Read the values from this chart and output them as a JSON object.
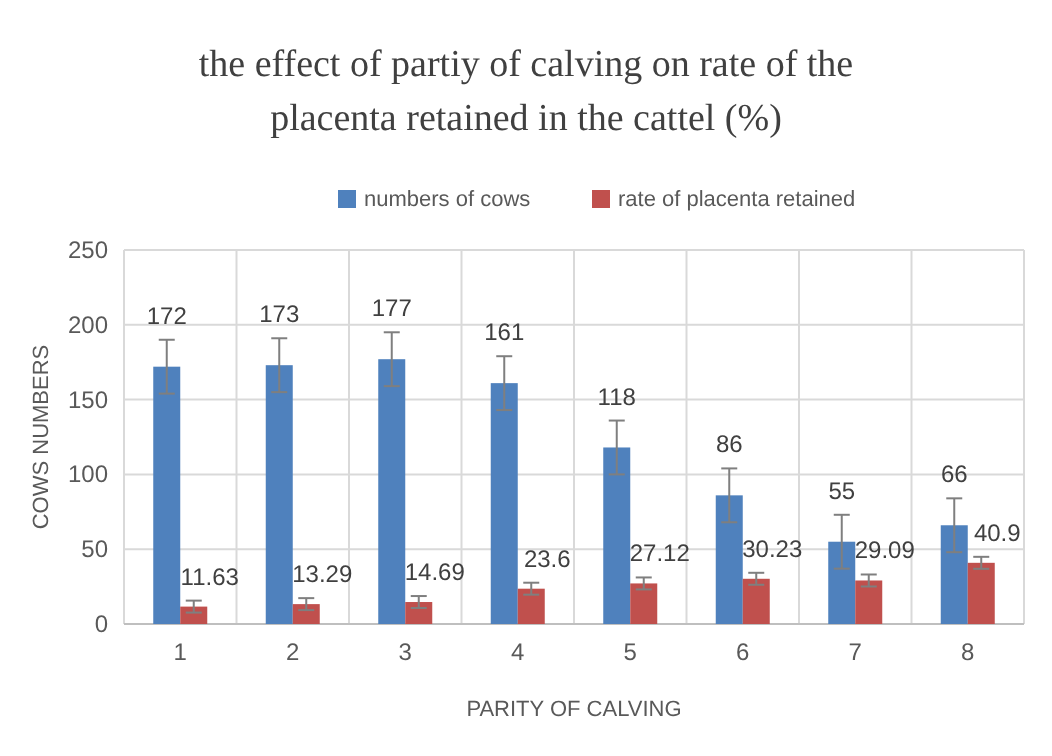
{
  "chart_data": {
    "type": "bar",
    "title": "the effect of partiy of calving on rate of the placenta retained in the cattel (%)",
    "xlabel": "PARITY OF CALVING",
    "ylabel": "COWS NUMBERS",
    "categories": [
      "1",
      "2",
      "3",
      "4",
      "5",
      "6",
      "7",
      "8"
    ],
    "series": [
      {
        "name": "numbers of cows",
        "color": "#4f81bd",
        "values": [
          172,
          173,
          177,
          161,
          118,
          86,
          55,
          66
        ],
        "errors": [
          18,
          18,
          18,
          18,
          18,
          18,
          18,
          18
        ]
      },
      {
        "name": "rate of placenta retained",
        "color": "#c0504d",
        "values": [
          11.63,
          13.29,
          14.69,
          23.6,
          27.12,
          30.23,
          29.09,
          40.9
        ],
        "errors": [
          4,
          4,
          4,
          4,
          4,
          4,
          4,
          4
        ]
      }
    ],
    "ylim": [
      0,
      250
    ],
    "yticks": [
      0,
      50,
      100,
      150,
      200,
      250
    ],
    "grid": true,
    "legend": "top",
    "data_labels": true
  }
}
